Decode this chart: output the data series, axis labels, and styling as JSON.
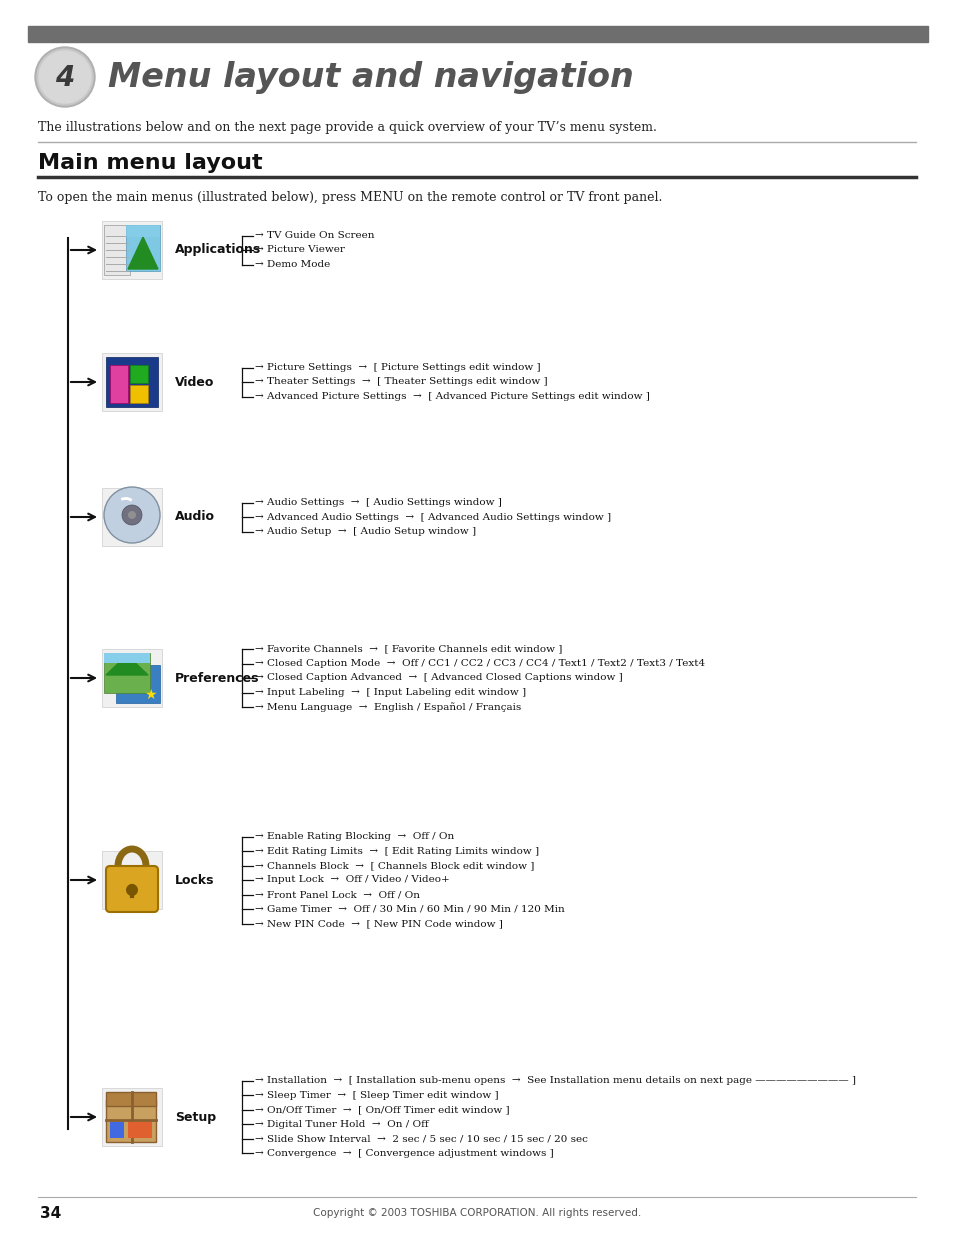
{
  "page_bg": "#ffffff",
  "top_bar_color": "#6e6e6e",
  "chapter_number": "4",
  "chapter_title": "Menu layout and navigation",
  "intro_text": "The illustrations below and on the next page provide a quick overview of your TV’s menu system.",
  "section_title": "Main menu layout",
  "section_intro": "To open the main menus (illustrated below), press MENU on the remote control or TV front panel.",
  "footer_text": "Copyright © 2003 TOSHIBA CORPORATION. All rights reserved.",
  "page_number": "34",
  "menu_items": [
    {
      "name": "Applications",
      "sub_items": [
        "→ TV Guide On Screen",
        "→ Picture Viewer",
        "→ Demo Mode"
      ]
    },
    {
      "name": "Video",
      "sub_items": [
        "→ Picture Settings  →  [ Picture Settings edit window ]",
        "→ Theater Settings  →  [ Theater Settings edit window ]",
        "→ Advanced Picture Settings  →  [ Advanced Picture Settings edit window ]"
      ]
    },
    {
      "name": "Audio",
      "sub_items": [
        "→ Audio Settings  →  [ Audio Settings window ]",
        "→ Advanced Audio Settings  →  [ Advanced Audio Settings window ]",
        "→ Audio Setup  →  [ Audio Setup window ]"
      ]
    },
    {
      "name": "Preferences",
      "sub_items": [
        "→ Favorite Channels  →  [ Favorite Channels edit window ]",
        "→ Closed Caption Mode  →  Off / CC1 / CC2 / CC3 / CC4 / Text1 / Text2 / Text3 / Text4",
        "→ Closed Caption Advanced  →  [ Advanced Closed Captions window ]",
        "→ Input Labeling  →  [ Input Labeling edit window ]",
        "→ Menu Language  →  English / Español / Français"
      ]
    },
    {
      "name": "Locks",
      "sub_items": [
        "→ Enable Rating Blocking  →  Off / On",
        "→ Edit Rating Limits  →  [ Edit Rating Limits window ]",
        "→ Channels Block  →  [ Channels Block edit window ]",
        "→ Input Lock  →  Off / Video / Video+",
        "→ Front Panel Lock  →  Off / On",
        "→ Game Timer  →  Off / 30 Min / 60 Min / 90 Min / 120 Min",
        "→ New PIN Code  →  [ New PIN Code window ]"
      ]
    },
    {
      "name": "Setup",
      "sub_items": [
        "→ Installation  →  [ Installation sub-menu opens  →  See Installation menu details on next page ————————— ]",
        "→ Sleep Timer  →  [ Sleep Timer edit window ]",
        "→ On/Off Timer  →  [ On/Off Timer edit window ]",
        "→ Digital Tuner Hold  →  On / Off",
        "→ Slide Show Interval  →  2 sec / 5 sec / 10 sec / 15 sec / 20 sec",
        "→ Convergence  →  [ Convergence adjustment windows ]"
      ]
    }
  ]
}
